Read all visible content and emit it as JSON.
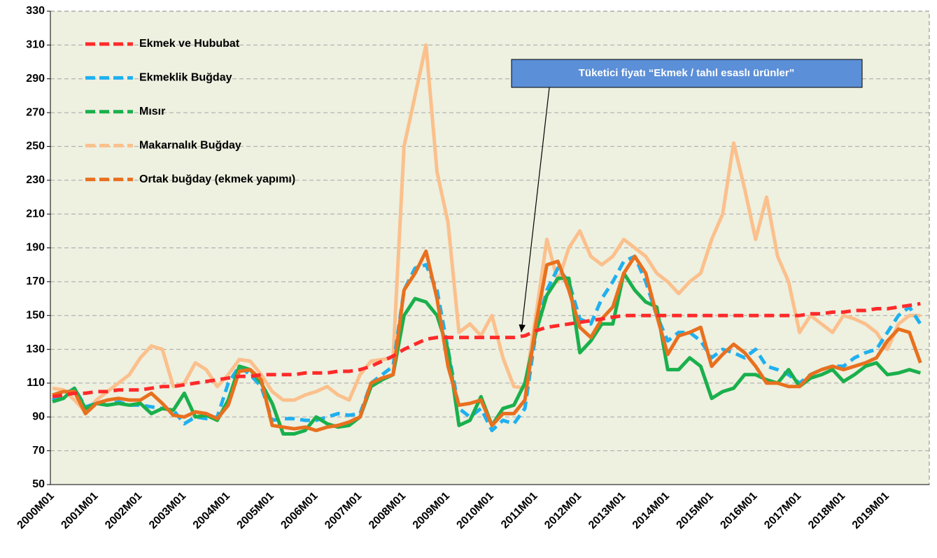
{
  "chart_data": {
    "type": "line",
    "annotation": "Tüketici fiyatı “Ekmek / tahıl esaslı ürünler”",
    "categories": [
      "2000M01",
      null,
      null,
      null,
      "2001M01",
      null,
      null,
      null,
      "2002M01",
      null,
      null,
      null,
      "2003M01",
      null,
      null,
      null,
      "2004M01",
      null,
      null,
      null,
      "2005M01",
      null,
      null,
      null,
      "2006M01",
      null,
      null,
      null,
      "2007M01",
      null,
      null,
      null,
      "2008M01",
      null,
      null,
      null,
      "2009M01",
      null,
      null,
      null,
      "2010M01",
      null,
      null,
      null,
      "2011M01",
      null,
      null,
      null,
      "2012M01",
      null,
      null,
      null,
      "2013M01",
      null,
      null,
      null,
      "2014M01",
      null,
      null,
      null,
      "2015M01",
      null,
      null,
      null,
      "2016M01",
      null,
      null,
      null,
      "2017M01",
      null,
      null,
      null,
      "2018M01",
      null,
      null,
      null,
      "2019M01",
      null,
      null,
      null
    ],
    "ylim": [
      50,
      330
    ],
    "yticks": [
      50,
      70,
      90,
      110,
      130,
      150,
      170,
      190,
      210,
      230,
      250,
      270,
      290,
      310,
      330
    ],
    "grid": true,
    "legend": "top-left",
    "series": [
      {
        "name": "Ekmek ve Hububat",
        "color": "#ff2a2a",
        "dashed": true,
        "values": [
          102,
          103,
          104,
          104,
          105,
          105,
          106,
          106,
          106,
          107,
          108,
          108,
          109,
          110,
          111,
          112,
          113,
          114,
          114,
          115,
          115,
          115,
          115,
          116,
          116,
          116,
          117,
          117,
          118,
          120,
          123,
          126,
          130,
          133,
          136,
          137,
          137,
          137,
          137,
          137,
          137,
          137,
          137,
          138,
          141,
          143,
          144,
          145,
          146,
          147,
          148,
          149,
          150,
          150,
          150,
          150,
          150,
          150,
          150,
          150,
          150,
          150,
          150,
          150,
          150,
          150,
          150,
          150,
          150,
          151,
          151,
          152,
          152,
          153,
          153,
          154,
          154,
          155,
          156,
          157
        ]
      },
      {
        "name": "Ekmeklik Buğday",
        "color": "#1fb0f0",
        "dashed": true,
        "values": [
          100,
          103,
          107,
          96,
          98,
          97,
          99,
          97,
          97,
          96,
          95,
          94,
          86,
          90,
          89,
          90,
          110,
          120,
          115,
          108,
          88,
          89,
          89,
          88,
          88,
          90,
          92,
          91,
          92,
          110,
          115,
          120,
          165,
          178,
          180,
          165,
          130,
          95,
          90,
          95,
          82,
          88,
          86,
          95,
          140,
          165,
          178,
          170,
          148,
          145,
          160,
          170,
          182,
          185,
          170,
          150,
          135,
          140,
          140,
          135,
          125,
          130,
          128,
          125,
          130,
          120,
          118,
          115,
          110,
          115,
          118,
          120,
          120,
          125,
          128,
          130,
          140,
          150,
          155,
          145
        ]
      },
      {
        "name": "Mısır",
        "color": "#1ab04c",
        "dashed": false,
        "values": [
          99,
          101,
          107,
          95,
          98,
          97,
          98,
          97,
          98,
          92,
          95,
          94,
          104,
          90,
          91,
          88,
          100,
          120,
          118,
          110,
          98,
          80,
          80,
          82,
          90,
          86,
          84,
          85,
          90,
          108,
          112,
          115,
          150,
          160,
          158,
          150,
          130,
          85,
          88,
          102,
          85,
          95,
          97,
          110,
          140,
          162,
          172,
          172,
          128,
          135,
          145,
          145,
          175,
          165,
          158,
          155,
          118,
          118,
          125,
          120,
          101,
          105,
          107,
          115,
          115,
          112,
          110,
          118,
          108,
          113,
          115,
          118,
          111,
          115,
          120,
          122,
          115,
          116,
          118,
          116
        ]
      },
      {
        "name": "Makarnalık Buğday",
        "color": "#fbc08c",
        "dashed": false,
        "values": [
          107,
          106,
          100,
          93,
          100,
          105,
          110,
          115,
          125,
          132,
          130,
          108,
          110,
          122,
          118,
          108,
          115,
          124,
          123,
          115,
          105,
          100,
          100,
          103,
          105,
          108,
          103,
          100,
          115,
          123,
          124,
          125,
          250,
          280,
          310,
          235,
          205,
          140,
          145,
          138,
          150,
          125,
          108,
          107,
          150,
          195,
          170,
          190,
          200,
          185,
          180,
          185,
          195,
          190,
          185,
          175,
          170,
          163,
          170,
          175,
          195,
          210,
          252,
          225,
          195,
          220,
          185,
          170,
          140,
          150,
          145,
          140,
          150,
          148,
          145,
          140,
          130,
          145,
          150,
          150
        ]
      },
      {
        "name": "Ortak buğday (ekmek yapımı)",
        "color": "#e8701e",
        "dashed": false,
        "values": [
          103,
          105,
          105,
          92,
          98,
          100,
          101,
          100,
          100,
          104,
          98,
          91,
          90,
          93,
          92,
          89,
          97,
          117,
          118,
          112,
          85,
          84,
          83,
          84,
          82,
          84,
          85,
          87,
          90,
          110,
          113,
          115,
          165,
          175,
          188,
          160,
          120,
          97,
          98,
          100,
          85,
          92,
          92,
          100,
          145,
          180,
          182,
          165,
          143,
          137,
          148,
          155,
          175,
          185,
          175,
          150,
          127,
          138,
          140,
          143,
          120,
          127,
          133,
          128,
          120,
          110,
          110,
          108,
          108,
          115,
          118,
          120,
          118,
          120,
          122,
          125,
          135,
          142,
          140,
          122
        ]
      }
    ]
  }
}
